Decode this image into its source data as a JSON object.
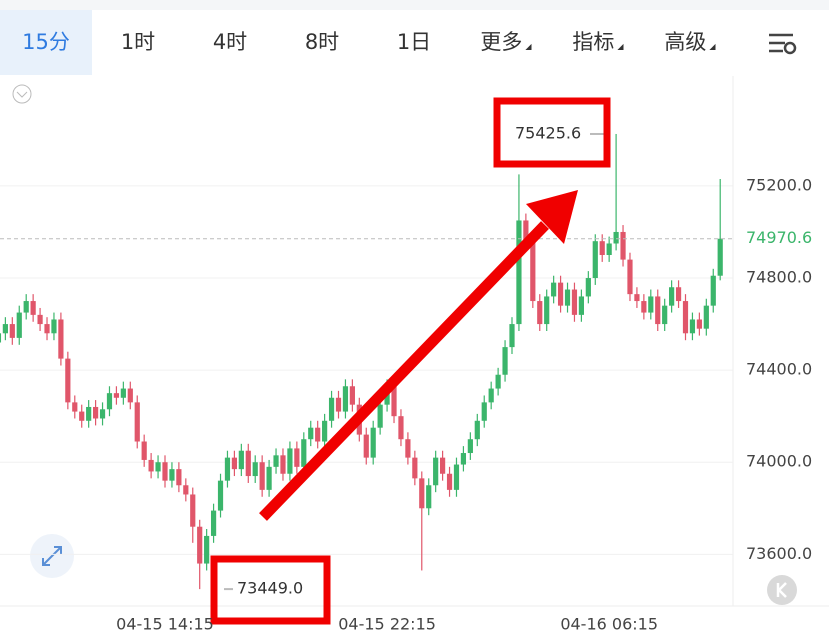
{
  "tabs": [
    "15分",
    "1时",
    "4时",
    "8时",
    "1日",
    "更多",
    "指标",
    "高级"
  ],
  "chart_data": {
    "type": "candlestick",
    "categories": [
      null,
      null,
      null,
      null,
      null,
      null,
      null,
      null,
      null,
      null,
      null,
      null,
      null,
      null,
      null,
      null,
      null,
      null,
      null,
      null,
      null,
      null,
      null,
      null,
      "04-15 14:15",
      null,
      null,
      null,
      null,
      null,
      null,
      null,
      null,
      null,
      null,
      null,
      null,
      null,
      null,
      null,
      null,
      null,
      null,
      null,
      null,
      null,
      null,
      null,
      null,
      null,
      null,
      null,
      null,
      null,
      null,
      null,
      "04-15 22:15",
      null,
      null,
      null,
      null,
      null,
      null,
      null,
      null,
      null,
      null,
      null,
      null,
      null,
      null,
      null,
      null,
      null,
      null,
      null,
      null,
      null,
      null,
      null,
      null,
      null,
      null,
      null,
      null,
      null,
      null,
      null,
      "04-16 06:15",
      null,
      null,
      null,
      null,
      null,
      null,
      null,
      null,
      null,
      null,
      null,
      null,
      null,
      null,
      null,
      null
    ],
    "open": [
      74520,
      74560,
      74600,
      74540,
      74650,
      74700,
      74640,
      74600,
      74560,
      74620,
      74450,
      74260,
      74220,
      74180,
      74240,
      74190,
      74230,
      74300,
      74280,
      74320,
      74260,
      74090,
      74010,
      73960,
      74000,
      73920,
      73970,
      73900,
      73860,
      73720,
      73560,
      73680,
      73790,
      73920,
      74020,
      73970,
      74050,
      73940,
      74000,
      73880,
      73980,
      74030,
      73950,
      74060,
      73980,
      74100,
      74150,
      74090,
      74180,
      74280,
      74220,
      74330,
      74250,
      74120,
      74020,
      74150,
      74250,
      74330,
      74200,
      74100,
      74020,
      73930,
      73800,
      73900,
      74020,
      73950,
      73880,
      73990,
      74040,
      74100,
      74180,
      74260,
      74320,
      74380,
      74500,
      74600,
      75050,
      74960,
      74700,
      74600,
      74720,
      74780,
      74680,
      74750,
      74640,
      74720,
      74800,
      74960,
      74900,
      74950,
      75000,
      74880,
      74730,
      74700,
      74650,
      74720,
      74600,
      74680,
      74760,
      74700,
      74560,
      74620,
      74580,
      74680,
      74810
    ],
    "high": [
      74590,
      74630,
      74630,
      74680,
      74730,
      74730,
      74670,
      74630,
      74650,
      74650,
      74480,
      74290,
      74250,
      74270,
      74270,
      74260,
      74330,
      74330,
      74350,
      74350,
      74290,
      74120,
      74040,
      74030,
      74030,
      74000,
      74000,
      73930,
      73890,
      73750,
      73710,
      73820,
      73950,
      74050,
      74050,
      74080,
      74080,
      74030,
      74030,
      74010,
      74060,
      74060,
      74090,
      74090,
      74130,
      74180,
      74180,
      74210,
      74310,
      74310,
      74360,
      74360,
      74280,
      74150,
      74180,
      74280,
      74360,
      74360,
      74230,
      74130,
      74050,
      73960,
      73930,
      74050,
      74050,
      73980,
      74020,
      74070,
      74130,
      74210,
      74290,
      74350,
      74410,
      74530,
      74630,
      75250,
      75080,
      74990,
      74730,
      74750,
      74810,
      74810,
      74780,
      74780,
      74750,
      74830,
      74990,
      74990,
      74980,
      75425.6,
      75030,
      74910,
      74760,
      74730,
      74750,
      74750,
      74710,
      74790,
      74790,
      74730,
      74650,
      74650,
      74710,
      74840,
      75230
    ],
    "low": [
      74490,
      74530,
      74510,
      74510,
      74620,
      74610,
      74570,
      74530,
      74530,
      74420,
      74230,
      74190,
      74150,
      74150,
      74160,
      74160,
      74200,
      74250,
      74250,
      74230,
      74060,
      73980,
      73930,
      73930,
      73890,
      73890,
      73870,
      73830,
      73650,
      73449.0,
      73530,
      73650,
      73760,
      73890,
      73940,
      73940,
      73910,
      73910,
      73850,
      73850,
      73950,
      73920,
      73920,
      73950,
      73950,
      74070,
      74060,
      74060,
      74150,
      74190,
      74190,
      74220,
      74090,
      73990,
      73990,
      74120,
      74220,
      74170,
      74070,
      73990,
      73900,
      73530,
      73770,
      73870,
      73920,
      73850,
      73850,
      73960,
      74010,
      74070,
      74150,
      74230,
      74290,
      74350,
      74470,
      74570,
      74930,
      74670,
      74570,
      74570,
      74690,
      74650,
      74650,
      74610,
      74610,
      74690,
      74770,
      74870,
      74870,
      74920,
      74850,
      74700,
      74670,
      74620,
      74620,
      74570,
      74570,
      74650,
      74670,
      74530,
      74530,
      74550,
      74550,
      74650,
      74790
    ],
    "close": [
      74560,
      74600,
      74540,
      74650,
      74700,
      74640,
      74600,
      74560,
      74620,
      74450,
      74260,
      74220,
      74180,
      74240,
      74190,
      74230,
      74300,
      74280,
      74320,
      74260,
      74090,
      74010,
      73960,
      74000,
      73920,
      73970,
      73900,
      73860,
      73720,
      73560,
      73680,
      73790,
      73920,
      74020,
      73970,
      74050,
      73940,
      74000,
      73880,
      73980,
      74030,
      73950,
      74060,
      73980,
      74100,
      74150,
      74090,
      74180,
      74280,
      74220,
      74330,
      74250,
      74120,
      74020,
      74150,
      74250,
      74330,
      74200,
      74100,
      74020,
      73930,
      73800,
      73900,
      74020,
      73950,
      73880,
      73990,
      74040,
      74100,
      74180,
      74260,
      74320,
      74380,
      74500,
      74600,
      75050,
      74960,
      74700,
      74600,
      74720,
      74780,
      74680,
      74750,
      74640,
      74720,
      74800,
      74960,
      74900,
      74950,
      75000,
      74880,
      74730,
      74700,
      74650,
      74720,
      74600,
      74680,
      74760,
      74700,
      74560,
      74620,
      74580,
      74680,
      74810,
      74970.6
    ],
    "up_color": "#3bb56b",
    "down_color": "#e0566a",
    "ylim": [
      73380,
      75660
    ],
    "yticks": [
      {
        "value": 73600,
        "label": "73600.0"
      },
      {
        "value": 74000,
        "label": "74000.0"
      },
      {
        "value": 74400,
        "label": "74400.0"
      },
      {
        "value": 74800,
        "label": "74800.0"
      },
      {
        "value": 75200,
        "label": "75200.0"
      }
    ],
    "grid": true,
    "last_price": {
      "value": 74970.6,
      "label": "74970.6"
    },
    "annotations": [
      {
        "value": 75425.6,
        "label": "75425.6"
      },
      {
        "value": 73449.0,
        "label": "73449.0"
      }
    ]
  }
}
